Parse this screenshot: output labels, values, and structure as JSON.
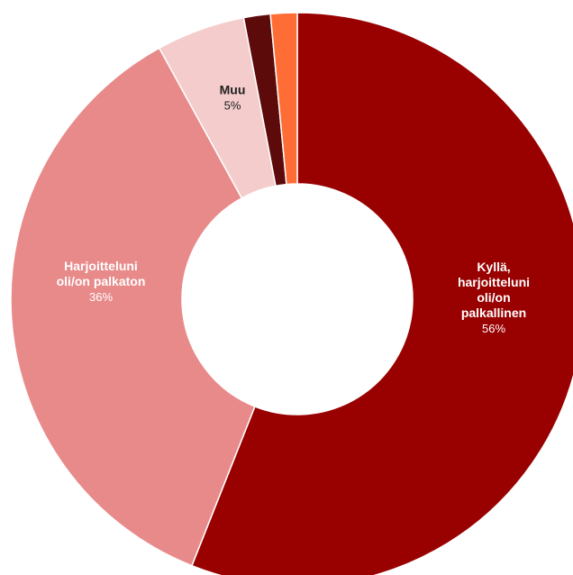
{
  "chart_data": {
    "type": "pie",
    "title": "",
    "slices": [
      {
        "label_lines": [
          "Kyllä,",
          "harjoitteluni",
          "oli/on",
          "palkallinen"
        ],
        "value": 56,
        "value_label": "56%",
        "color": "#990000"
      },
      {
        "label_lines": [
          "Harjoitteluni",
          "oli/on palkaton"
        ],
        "value": 36,
        "value_label": "36%",
        "color": "#e88a8a"
      },
      {
        "label_lines": [
          "Muu"
        ],
        "value": 5,
        "value_label": "5%",
        "color": "#f4cccc"
      },
      {
        "label_lines": [],
        "value": 1.5,
        "value_label": "",
        "color": "#5c0a0a"
      },
      {
        "label_lines": [],
        "value": 1.5,
        "value_label": "",
        "color": "#ff6d36"
      }
    ]
  }
}
